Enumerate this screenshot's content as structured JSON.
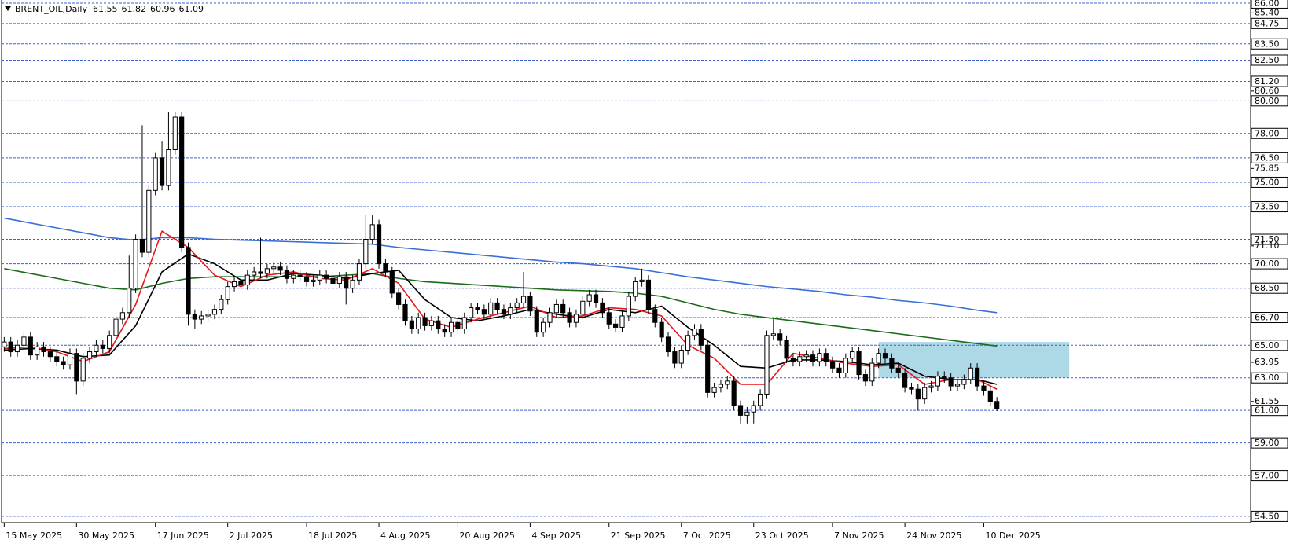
{
  "chart_data": {
    "type": "candlestick",
    "title": "BRENT_OIL,Daily",
    "up_color": "#ffffff",
    "down_color": "#000000",
    "grid": true,
    "xlim": [
      -0.4,
      189.6
    ],
    "ylim": [
      54.11,
      86.19
    ],
    "xticks": [
      {
        "value": 0,
        "label": "15 May 2025"
      },
      {
        "value": 11,
        "label": "30 May 2025"
      },
      {
        "value": 23,
        "label": "17 Jun 2025"
      },
      {
        "value": 34,
        "label": "2 Jul 2025"
      },
      {
        "value": 46,
        "label": "18 Jul 2025"
      },
      {
        "value": 57,
        "label": "4 Aug 2025"
      },
      {
        "value": 69,
        "label": "20 Aug 2025"
      },
      {
        "value": 80,
        "label": "4 Sep 2025"
      },
      {
        "value": 92,
        "label": "21 Sep 2025"
      },
      {
        "value": 103,
        "label": "7 Oct 2025"
      },
      {
        "value": 114,
        "label": "23 Oct 2025"
      },
      {
        "value": 126,
        "label": "7 Nov 2025"
      },
      {
        "value": 137,
        "label": "24 Nov 2025"
      },
      {
        "value": 149,
        "label": "10 Dec 2025"
      }
    ],
    "yticks": [
      {
        "value": 85.4,
        "label": "85.40"
      },
      {
        "value": 80.6,
        "label": "80.60"
      },
      {
        "value": 75.85,
        "label": "75.85"
      },
      {
        "value": 71.1,
        "label": "71.10"
      },
      {
        "value": 63.95,
        "label": "63.95"
      },
      {
        "value": 61.55,
        "label": "61.55"
      }
    ],
    "levels": [
      {
        "value": 86,
        "label": "86.00"
      },
      {
        "value": 84.75,
        "label": "84.75"
      },
      {
        "value": 83.5,
        "label": "83.50"
      },
      {
        "value": 82.5,
        "label": "82.50"
      },
      {
        "value": 81.2,
        "label": "81.20"
      },
      {
        "value": 80,
        "label": "80.00"
      },
      {
        "value": 78,
        "label": "78.00"
      },
      {
        "value": 76.5,
        "label": "76.50"
      },
      {
        "value": 75,
        "label": "75.00"
      },
      {
        "value": 73.5,
        "label": "73.50"
      },
      {
        "value": 71.5,
        "label": "71.50"
      },
      {
        "value": 70,
        "label": "70.00"
      },
      {
        "value": 68.5,
        "label": "68.50"
      },
      {
        "value": 66.7,
        "label": "66.70"
      },
      {
        "value": 65,
        "label": "65.00"
      },
      {
        "value": 63,
        "label": "63.00"
      },
      {
        "value": 61,
        "label": "61.00"
      },
      {
        "value": 59,
        "label": "59.00"
      },
      {
        "value": 57,
        "label": "57.00"
      },
      {
        "value": 54.5,
        "label": "54.50"
      }
    ],
    "level_color": "#3a5fcd",
    "zone": {
      "x": [
        133,
        162
      ],
      "y": [
        63.0,
        65.2
      ],
      "color": "#add8e6"
    },
    "candles": [
      [
        64.9,
        65.5,
        64.6,
        65.2
      ],
      [
        65.2,
        65.5,
        64.3,
        64.6
      ],
      [
        64.6,
        65.3,
        64.3,
        65.0
      ],
      [
        65.0,
        65.8,
        64.7,
        65.5
      ],
      [
        65.5,
        65.8,
        64.1,
        64.4
      ],
      [
        64.4,
        65.2,
        64.1,
        64.9
      ],
      [
        64.9,
        65.2,
        64.3,
        64.6
      ],
      [
        64.6,
        64.9,
        64.0,
        64.3
      ],
      [
        64.3,
        64.6,
        63.7,
        64.0
      ],
      [
        64.0,
        64.3,
        63.5,
        63.8
      ],
      [
        63.8,
        64.8,
        63.5,
        64.5
      ],
      [
        64.5,
        64.8,
        62.0,
        62.8
      ],
      [
        62.8,
        64.5,
        62.5,
        64.2
      ],
      [
        64.2,
        64.9,
        63.9,
        64.6
      ],
      [
        64.6,
        65.3,
        64.3,
        65.0
      ],
      [
        65.0,
        65.3,
        64.5,
        64.8
      ],
      [
        64.8,
        65.9,
        64.5,
        65.6
      ],
      [
        65.6,
        66.9,
        65.3,
        66.6
      ],
      [
        66.6,
        67.3,
        66.3,
        67.0
      ],
      [
        67.0,
        70.5,
        66.7,
        68.5
      ],
      [
        68.5,
        71.8,
        68.2,
        71.5
      ],
      [
        71.5,
        78.5,
        70.4,
        70.7
      ],
      [
        70.7,
        74.8,
        70.4,
        74.5
      ],
      [
        74.5,
        76.8,
        74.2,
        76.5
      ],
      [
        76.5,
        77.5,
        74.5,
        74.8
      ],
      [
        74.8,
        79.3,
        74.5,
        77.0
      ],
      [
        77.0,
        79.3,
        76.7,
        79.0
      ],
      [
        79.0,
        79.3,
        70.7,
        71.0
      ],
      [
        71.0,
        71.3,
        66.2,
        66.9
      ],
      [
        66.9,
        67.2,
        66.0,
        66.6
      ],
      [
        66.6,
        67.1,
        66.3,
        66.8
      ],
      [
        66.8,
        67.2,
        66.5,
        66.9
      ],
      [
        66.9,
        67.5,
        66.6,
        67.2
      ],
      [
        67.2,
        68.1,
        66.9,
        67.8
      ],
      [
        67.8,
        68.9,
        67.5,
        68.6
      ],
      [
        68.6,
        69.2,
        68.3,
        68.9
      ],
      [
        68.9,
        69.2,
        68.4,
        68.7
      ],
      [
        68.7,
        69.6,
        68.4,
        69.3
      ],
      [
        69.3,
        69.8,
        69.0,
        69.5
      ],
      [
        69.5,
        71.6,
        69.1,
        69.4
      ],
      [
        69.4,
        70.0,
        69.1,
        69.7
      ],
      [
        69.7,
        70.1,
        69.4,
        69.8
      ],
      [
        69.8,
        70.1,
        69.3,
        69.6
      ],
      [
        69.6,
        69.9,
        68.8,
        69.1
      ],
      [
        69.1,
        69.6,
        68.8,
        69.3
      ],
      [
        69.3,
        69.6,
        68.9,
        69.2
      ],
      [
        69.2,
        69.5,
        68.6,
        68.9
      ],
      [
        68.9,
        69.3,
        68.6,
        69.0
      ],
      [
        69.0,
        69.6,
        68.7,
        69.3
      ],
      [
        69.3,
        69.6,
        68.8,
        69.1
      ],
      [
        69.1,
        69.4,
        68.5,
        68.8
      ],
      [
        68.8,
        69.5,
        68.5,
        69.2
      ],
      [
        69.2,
        69.5,
        67.5,
        68.5
      ],
      [
        68.5,
        69.3,
        68.2,
        69.0
      ],
      [
        69.0,
        70.3,
        68.7,
        70.0
      ],
      [
        70.0,
        73.0,
        69.7,
        71.5
      ],
      [
        71.5,
        73.0,
        71.2,
        72.4
      ],
      [
        72.4,
        72.7,
        69.7,
        70.0
      ],
      [
        70.0,
        70.3,
        69.2,
        69.5
      ],
      [
        69.5,
        69.8,
        67.9,
        68.2
      ],
      [
        68.2,
        68.5,
        67.2,
        67.5
      ],
      [
        67.5,
        67.8,
        66.2,
        66.5
      ],
      [
        66.5,
        66.8,
        65.7,
        66.0
      ],
      [
        66.0,
        67.0,
        65.7,
        66.7
      ],
      [
        66.7,
        67.0,
        65.9,
        66.2
      ],
      [
        66.2,
        66.8,
        65.9,
        66.5
      ],
      [
        66.5,
        66.8,
        65.7,
        66.0
      ],
      [
        66.0,
        66.3,
        65.5,
        65.8
      ],
      [
        65.8,
        66.7,
        65.5,
        66.4
      ],
      [
        66.4,
        66.7,
        65.7,
        66.0
      ],
      [
        66.0,
        67.0,
        65.7,
        66.7
      ],
      [
        66.7,
        67.6,
        66.4,
        67.3
      ],
      [
        67.3,
        67.6,
        66.9,
        67.2
      ],
      [
        67.2,
        67.5,
        66.6,
        66.9
      ],
      [
        66.9,
        67.9,
        66.6,
        67.6
      ],
      [
        67.6,
        67.9,
        66.9,
        67.2
      ],
      [
        67.2,
        67.5,
        66.6,
        66.9
      ],
      [
        66.9,
        67.6,
        66.6,
        67.3
      ],
      [
        67.3,
        67.9,
        67.0,
        67.6
      ],
      [
        67.6,
        69.5,
        67.3,
        68.0
      ],
      [
        68.0,
        68.3,
        66.8,
        67.1
      ],
      [
        67.1,
        67.4,
        65.5,
        65.8
      ],
      [
        65.8,
        66.7,
        65.5,
        66.4
      ],
      [
        66.4,
        67.3,
        66.1,
        67.0
      ],
      [
        67.0,
        67.8,
        66.7,
        67.5
      ],
      [
        67.5,
        67.8,
        66.7,
        67.0
      ],
      [
        67.0,
        67.3,
        66.1,
        66.4
      ],
      [
        66.4,
        67.2,
        66.1,
        66.9
      ],
      [
        66.9,
        68.0,
        66.6,
        67.7
      ],
      [
        67.7,
        68.4,
        67.4,
        68.1
      ],
      [
        68.1,
        68.4,
        67.3,
        67.6
      ],
      [
        67.6,
        67.9,
        66.7,
        67.0
      ],
      [
        67.0,
        67.3,
        66.0,
        66.3
      ],
      [
        66.3,
        66.6,
        65.8,
        66.1
      ],
      [
        66.1,
        67.1,
        65.8,
        66.8
      ],
      [
        66.8,
        68.3,
        66.5,
        68.0
      ],
      [
        68.0,
        69.2,
        67.7,
        68.9
      ],
      [
        68.9,
        69.7,
        68.6,
        69.0
      ],
      [
        69.0,
        69.3,
        66.9,
        67.2
      ],
      [
        67.2,
        67.5,
        66.1,
        66.4
      ],
      [
        66.4,
        66.7,
        65.2,
        65.5
      ],
      [
        65.5,
        65.8,
        64.3,
        64.6
      ],
      [
        64.6,
        64.9,
        63.6,
        63.9
      ],
      [
        63.9,
        65.0,
        63.6,
        64.7
      ],
      [
        64.7,
        65.9,
        64.4,
        65.6
      ],
      [
        65.6,
        66.3,
        65.3,
        66.0
      ],
      [
        66.0,
        66.3,
        64.7,
        65.0
      ],
      [
        65.0,
        65.3,
        61.8,
        62.1
      ],
      [
        62.1,
        62.7,
        61.8,
        62.4
      ],
      [
        62.4,
        62.9,
        62.1,
        62.6
      ],
      [
        62.6,
        63.1,
        62.3,
        62.8
      ],
      [
        62.8,
        63.1,
        61.0,
        61.3
      ],
      [
        61.3,
        61.6,
        60.2,
        60.7
      ],
      [
        60.7,
        61.2,
        60.2,
        60.9
      ],
      [
        60.9,
        61.6,
        60.2,
        61.3
      ],
      [
        61.3,
        62.3,
        61.0,
        62.0
      ],
      [
        62.0,
        65.9,
        61.7,
        65.6
      ],
      [
        65.6,
        66.6,
        65.3,
        65.7
      ],
      [
        65.7,
        66.0,
        65.0,
        65.3
      ],
      [
        65.3,
        65.6,
        63.9,
        64.2
      ],
      [
        64.2,
        64.5,
        63.7,
        64.0
      ],
      [
        64.0,
        64.6,
        63.7,
        64.3
      ],
      [
        64.3,
        64.7,
        64.0,
        64.4
      ],
      [
        64.4,
        64.7,
        63.7,
        64.0
      ],
      [
        64.0,
        64.8,
        63.7,
        64.5
      ],
      [
        64.5,
        64.8,
        63.7,
        64.0
      ],
      [
        64.0,
        64.3,
        63.3,
        63.6
      ],
      [
        63.6,
        63.9,
        63.0,
        63.3
      ],
      [
        63.3,
        64.5,
        63.0,
        64.2
      ],
      [
        64.2,
        64.9,
        63.9,
        64.6
      ],
      [
        64.6,
        64.9,
        62.9,
        63.2
      ],
      [
        63.2,
        63.5,
        62.5,
        62.8
      ],
      [
        62.8,
        64.2,
        62.5,
        63.9
      ],
      [
        63.9,
        64.8,
        63.6,
        64.5
      ],
      [
        64.5,
        64.8,
        63.9,
        64.2
      ],
      [
        64.2,
        64.5,
        63.3,
        63.6
      ],
      [
        63.6,
        63.9,
        63.0,
        63.3
      ],
      [
        63.3,
        63.6,
        62.1,
        62.4
      ],
      [
        62.4,
        62.7,
        62.0,
        62.3
      ],
      [
        62.3,
        62.6,
        61.0,
        61.7
      ],
      [
        61.7,
        62.7,
        61.4,
        62.4
      ],
      [
        62.4,
        62.8,
        62.1,
        62.5
      ],
      [
        62.5,
        63.4,
        62.2,
        63.1
      ],
      [
        63.1,
        63.4,
        62.7,
        63.0
      ],
      [
        63.0,
        63.3,
        62.2,
        62.5
      ],
      [
        62.5,
        62.9,
        62.2,
        62.6
      ],
      [
        62.6,
        63.2,
        62.3,
        62.9
      ],
      [
        62.9,
        63.9,
        62.6,
        63.6
      ],
      [
        63.6,
        63.9,
        62.2,
        62.5
      ],
      [
        62.5,
        62.8,
        61.9,
        62.2
      ],
      [
        62.2,
        62.5,
        61.3,
        61.55
      ],
      [
        61.55,
        61.82,
        60.96,
        61.09
      ]
    ],
    "series": [
      {
        "color": "#3a6fd8",
        "x": [
          0,
          4,
          8,
          12,
          16,
          20,
          24,
          28,
          32,
          36,
          40,
          44,
          48,
          52,
          56,
          60,
          64,
          68,
          72,
          76,
          80,
          84,
          88,
          92,
          96,
          100,
          104,
          108,
          112,
          116,
          120,
          124,
          128,
          132,
          136,
          140,
          144,
          148,
          151
        ],
        "values": [
          72.8,
          72.5,
          72.2,
          71.9,
          71.6,
          71.45,
          71.6,
          71.6,
          71.5,
          71.45,
          71.4,
          71.35,
          71.3,
          71.25,
          71.2,
          71.0,
          70.85,
          70.7,
          70.55,
          70.4,
          70.25,
          70.1,
          70.0,
          69.85,
          69.7,
          69.45,
          69.2,
          69.0,
          68.8,
          68.6,
          68.45,
          68.3,
          68.1,
          67.95,
          67.75,
          67.6,
          67.4,
          67.15,
          67.0
        ]
      },
      {
        "color": "#1a6b1a",
        "x": [
          0,
          4,
          8,
          12,
          16,
          20,
          24,
          28,
          32,
          36,
          40,
          44,
          48,
          52,
          56,
          60,
          64,
          68,
          72,
          76,
          80,
          84,
          88,
          92,
          96,
          100,
          104,
          108,
          112,
          116,
          120,
          124,
          128,
          132,
          136,
          140,
          144,
          148,
          151
        ],
        "values": [
          69.7,
          69.4,
          69.1,
          68.8,
          68.5,
          68.4,
          68.8,
          69.1,
          69.2,
          69.2,
          69.2,
          69.2,
          69.2,
          69.3,
          69.4,
          69.1,
          68.9,
          68.8,
          68.7,
          68.6,
          68.5,
          68.4,
          68.35,
          68.3,
          68.2,
          68.0,
          67.6,
          67.2,
          66.9,
          66.7,
          66.5,
          66.3,
          66.1,
          65.9,
          65.7,
          65.5,
          65.3,
          65.1,
          64.95
        ]
      },
      {
        "color": "#000000",
        "x": [
          0,
          4,
          8,
          12,
          16,
          20,
          24,
          28,
          32,
          36,
          40,
          44,
          48,
          52,
          56,
          60,
          64,
          68,
          72,
          76,
          80,
          84,
          88,
          92,
          96,
          100,
          104,
          108,
          112,
          116,
          120,
          124,
          128,
          132,
          136,
          140,
          144,
          148,
          151
        ],
        "values": [
          64.7,
          64.8,
          64.7,
          64.3,
          64.4,
          66.2,
          69.5,
          70.6,
          70.0,
          69.0,
          69.0,
          69.4,
          69.3,
          69.1,
          69.4,
          69.6,
          67.8,
          66.7,
          66.5,
          66.8,
          67.2,
          66.9,
          66.7,
          67.2,
          67.0,
          67.4,
          66.1,
          65.0,
          63.7,
          63.6,
          64.1,
          64.1,
          64.0,
          63.8,
          63.9,
          63.1,
          62.9,
          62.9,
          62.6
        ]
      },
      {
        "color": "#e8141a",
        "x": [
          0,
          4,
          8,
          12,
          16,
          20,
          24,
          28,
          32,
          36,
          40,
          44,
          48,
          52,
          56,
          60,
          64,
          68,
          72,
          76,
          80,
          84,
          88,
          92,
          96,
          100,
          104,
          108,
          112,
          116,
          120,
          124,
          128,
          132,
          136,
          140,
          144,
          148,
          151
        ],
        "values": [
          64.8,
          64.9,
          64.6,
          64.0,
          64.6,
          67.5,
          72.0,
          71.0,
          69.3,
          68.6,
          69.3,
          69.5,
          69.1,
          69.0,
          69.7,
          68.8,
          66.6,
          66.1,
          66.6,
          67.0,
          67.4,
          66.7,
          66.8,
          67.3,
          67.2,
          66.8,
          65.0,
          64.2,
          62.6,
          62.6,
          64.5,
          64.2,
          63.9,
          63.7,
          63.8,
          62.6,
          62.9,
          62.9,
          62.3
        ]
      }
    ]
  }
}
